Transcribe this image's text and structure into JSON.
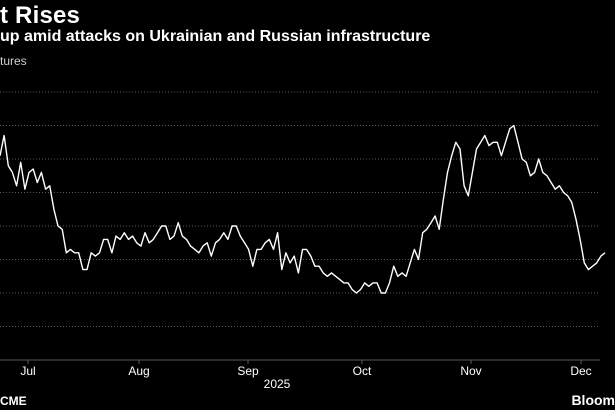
{
  "header": {
    "title": "t Rises",
    "subtitle": "up amid attacks on Ukrainian and Russian infrastructure",
    "unit_label": "tures"
  },
  "footer": {
    "source": "CME",
    "brand": "Bloom"
  },
  "colors": {
    "background": "#000000",
    "line": "#ffffff",
    "grid": "#5a5a5a",
    "text": "#ffffff"
  },
  "chart_data": {
    "type": "line",
    "title": "t Rises",
    "subtitle": "up amid attacks on Ukrainian and Russian infrastructure",
    "xlabel": "2025",
    "ylabel": "tures",
    "grid": true,
    "x_tick_labels": [
      "Jul",
      "Aug",
      "Sep",
      "Oct",
      "Nov",
      "Dec"
    ],
    "year_label": "2025",
    "ylim": [
      0,
      8
    ],
    "series": [
      {
        "name": "Futures",
        "values": [
          6.1,
          6.7,
          5.8,
          5.6,
          5.2,
          5.9,
          5.1,
          5.6,
          5.7,
          5.3,
          5.6,
          5.1,
          5.2,
          4.5,
          4.0,
          3.9,
          3.2,
          3.3,
          3.2,
          3.2,
          2.7,
          2.7,
          3.2,
          3.1,
          3.2,
          3.6,
          3.6,
          3.2,
          3.7,
          3.6,
          3.8,
          3.6,
          3.7,
          3.5,
          3.4,
          3.8,
          3.5,
          3.6,
          3.8,
          4.0,
          4.0,
          3.6,
          3.7,
          4.1,
          3.7,
          3.6,
          3.4,
          3.3,
          3.2,
          3.4,
          3.5,
          3.1,
          3.5,
          3.6,
          3.8,
          3.6,
          4.0,
          4.0,
          3.7,
          3.5,
          3.3,
          2.8,
          3.3,
          3.3,
          3.5,
          3.6,
          3.3,
          3.8,
          2.7,
          3.2,
          2.9,
          3.1,
          2.6,
          3.3,
          3.3,
          3.1,
          2.8,
          2.8,
          2.6,
          2.5,
          2.6,
          2.5,
          2.4,
          2.3,
          2.3,
          2.1,
          2.0,
          2.1,
          2.3,
          2.2,
          2.3,
          2.3,
          2.0,
          2.0,
          2.3,
          2.8,
          2.5,
          2.6,
          2.5,
          2.9,
          3.3,
          3.0,
          3.8,
          3.9,
          4.1,
          4.3,
          3.9,
          4.8,
          5.6,
          6.1,
          6.5,
          6.3,
          5.2,
          4.9,
          5.6,
          6.3,
          6.5,
          6.7,
          6.4,
          6.5,
          6.5,
          6.1,
          6.5,
          6.9,
          7.0,
          6.5,
          6.0,
          5.9,
          5.5,
          5.6,
          6.0,
          5.6,
          5.5,
          5.3,
          5.1,
          5.2,
          5.0,
          4.9,
          4.7,
          4.2,
          3.6,
          2.9,
          2.7,
          2.8,
          2.9,
          3.1,
          3.2
        ]
      }
    ]
  }
}
